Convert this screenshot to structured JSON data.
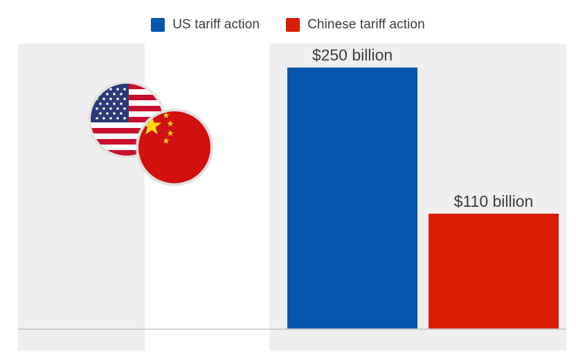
{
  "legend": {
    "items": [
      {
        "label": "US tariff action",
        "color": "#0457ad"
      },
      {
        "label": "Chinese tariff action",
        "color": "#d91e05"
      }
    ]
  },
  "flags": {
    "us_icon": "us-flag-icon",
    "china_icon": "china-flag-icon"
  },
  "chart_data": {
    "type": "bar",
    "categories": [
      "US tariff action",
      "Chinese tariff action"
    ],
    "values": [
      250,
      110
    ],
    "value_labels": [
      "$250 billion",
      "$110 billion"
    ],
    "colors": [
      "#0457ad",
      "#d91e05"
    ],
    "ylim": [
      0,
      265
    ],
    "grid": false,
    "legend_position": "top-center",
    "title": "",
    "xlabel": "",
    "ylabel": ""
  }
}
